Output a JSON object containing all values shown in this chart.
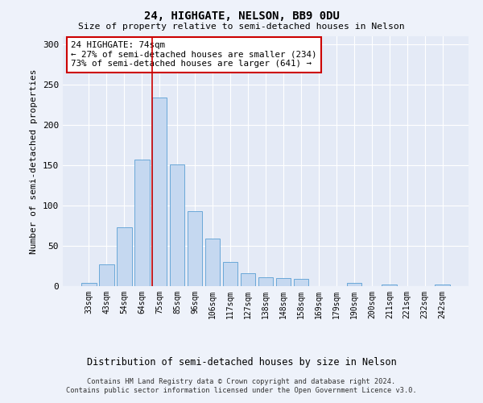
{
  "title1": "24, HIGHGATE, NELSON, BB9 0DU",
  "title2": "Size of property relative to semi-detached houses in Nelson",
  "xlabel": "Distribution of semi-detached houses by size in Nelson",
  "ylabel": "Number of semi-detached properties",
  "categories": [
    "33sqm",
    "43sqm",
    "54sqm",
    "64sqm",
    "75sqm",
    "85sqm",
    "96sqm",
    "106sqm",
    "117sqm",
    "127sqm",
    "138sqm",
    "148sqm",
    "158sqm",
    "169sqm",
    "179sqm",
    "190sqm",
    "200sqm",
    "211sqm",
    "221sqm",
    "232sqm",
    "242sqm"
  ],
  "values": [
    4,
    27,
    73,
    157,
    234,
    151,
    93,
    59,
    30,
    16,
    11,
    10,
    9,
    0,
    0,
    4,
    0,
    2,
    0,
    0,
    2
  ],
  "bar_color": "#c5d8f0",
  "bar_edge_color": "#5a9fd4",
  "property_line_index": 4,
  "annotation_text": "24 HIGHGATE: 74sqm\n← 27% of semi-detached houses are smaller (234)\n73% of semi-detached houses are larger (641) →",
  "annotation_box_color": "#ffffff",
  "annotation_box_edge_color": "#cc0000",
  "property_line_color": "#cc0000",
  "ylim": [
    0,
    310
  ],
  "yticks": [
    0,
    50,
    100,
    150,
    200,
    250,
    300
  ],
  "footer1": "Contains HM Land Registry data © Crown copyright and database right 2024.",
  "footer2": "Contains public sector information licensed under the Open Government Licence v3.0.",
  "background_color": "#eef2fa",
  "plot_background_color": "#e4eaf6"
}
